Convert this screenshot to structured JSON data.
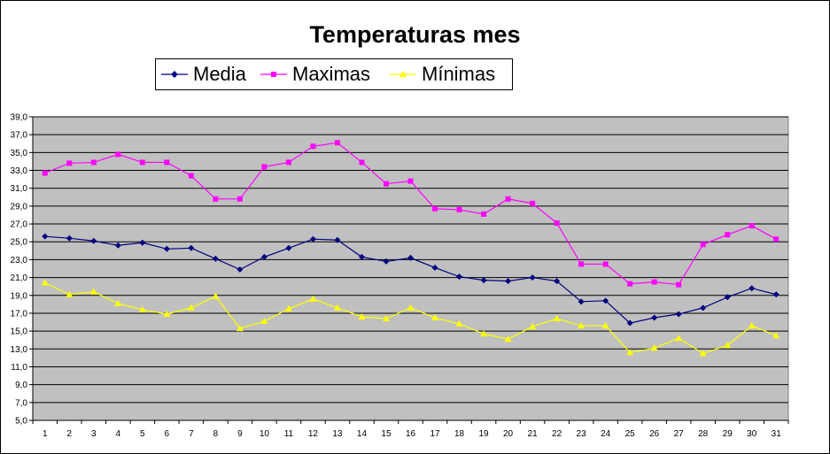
{
  "chart_data": {
    "type": "line",
    "title": "Temperaturas mes",
    "x": [
      1,
      2,
      3,
      4,
      5,
      6,
      7,
      8,
      9,
      10,
      11,
      12,
      13,
      14,
      15,
      16,
      17,
      18,
      19,
      20,
      21,
      22,
      23,
      24,
      25,
      26,
      27,
      28,
      29,
      30,
      31
    ],
    "ylim": [
      5.0,
      39.0
    ],
    "ytick_step": 2.0,
    "y_ticks": [
      "5,0",
      "7,0",
      "9,0",
      "11,0",
      "13,0",
      "15,0",
      "17,0",
      "19,0",
      "21,0",
      "23,0",
      "25,0",
      "27,0",
      "29,0",
      "31,0",
      "33,0",
      "35,0",
      "37,0",
      "39,0"
    ],
    "grid": true,
    "legend_position": "top",
    "plot_background": "#c0c0c0",
    "series": [
      {
        "name": "Media",
        "color": "#000080",
        "marker": "diamond",
        "values": [
          25.6,
          25.4,
          25.1,
          24.6,
          24.9,
          24.2,
          24.3,
          23.1,
          21.9,
          23.3,
          24.3,
          25.3,
          25.2,
          23.3,
          22.8,
          23.2,
          22.1,
          21.1,
          20.7,
          20.6,
          21.0,
          20.6,
          18.3,
          18.4,
          15.9,
          16.5,
          16.9,
          17.6,
          18.8,
          19.8,
          19.1
        ]
      },
      {
        "name": "Maximas",
        "color": "#ff00ff",
        "marker": "square",
        "values": [
          32.7,
          33.8,
          33.9,
          34.8,
          33.9,
          33.9,
          32.4,
          29.8,
          29.8,
          33.4,
          33.9,
          35.7,
          36.1,
          33.9,
          31.5,
          31.8,
          28.7,
          28.6,
          28.1,
          29.8,
          29.3,
          27.1,
          22.5,
          22.5,
          20.3,
          20.5,
          20.2,
          24.7,
          25.8,
          26.8,
          25.3
        ]
      },
      {
        "name": "Mínimas",
        "color": "#ffff00",
        "marker": "triangle",
        "values": [
          20.4,
          19.1,
          19.4,
          18.1,
          17.4,
          16.9,
          17.6,
          18.9,
          15.3,
          16.1,
          17.5,
          18.6,
          17.6,
          16.6,
          16.4,
          17.6,
          16.5,
          15.8,
          14.7,
          14.1,
          15.5,
          16.4,
          15.6,
          15.6,
          12.6,
          13.1,
          14.2,
          12.5,
          13.4,
          15.6,
          14.5
        ]
      }
    ]
  }
}
